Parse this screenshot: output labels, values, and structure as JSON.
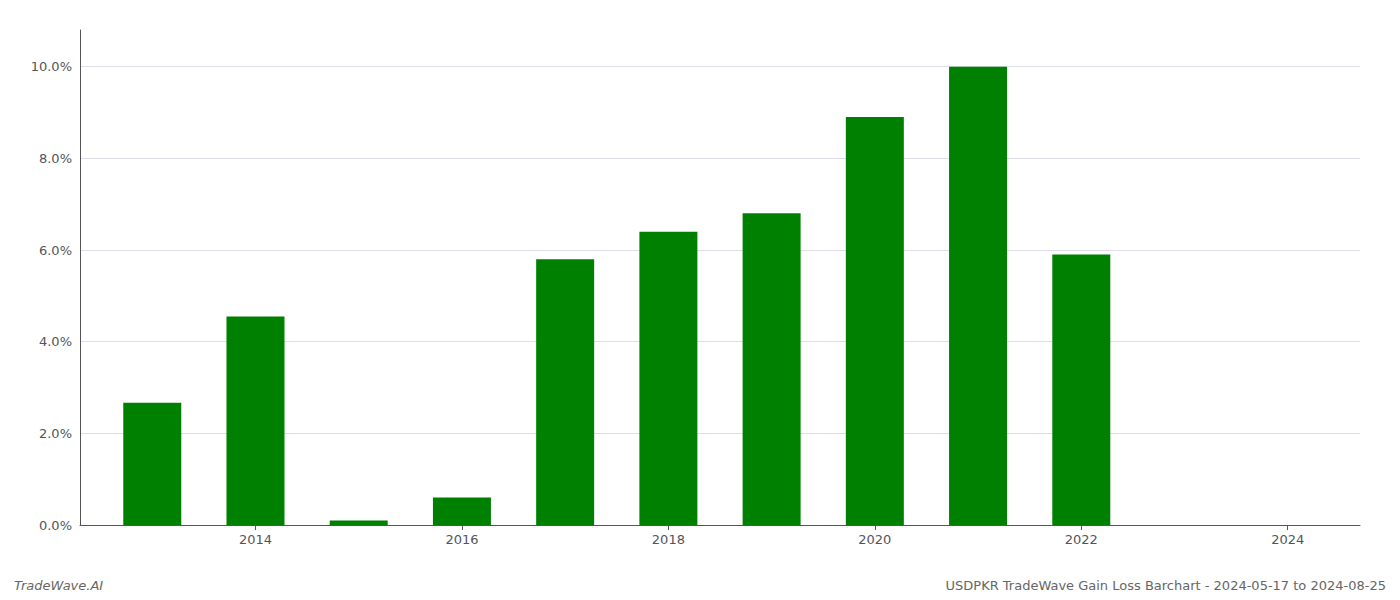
{
  "chart_data": {
    "type": "bar",
    "x": [
      2013,
      2014,
      2015,
      2016,
      2017,
      2018,
      2019,
      2020,
      2021,
      2022,
      2023
    ],
    "values": [
      0.0267,
      0.0455,
      0.001,
      0.006,
      0.058,
      0.064,
      0.068,
      0.089,
      0.1,
      0.059,
      0.0
    ],
    "color": "#008000",
    "xlim": [
      2012.3,
      2024.7
    ],
    "xticks": [
      2014,
      2016,
      2018,
      2020,
      2022,
      2024
    ],
    "ylim": [
      0,
      0.108
    ],
    "yticks": [
      {
        "value": 0.0,
        "label": "0.0%"
      },
      {
        "value": 0.02,
        "label": "2.0%"
      },
      {
        "value": 0.04,
        "label": "4.0%"
      },
      {
        "value": 0.06,
        "label": "6.0%"
      },
      {
        "value": 0.08,
        "label": "8.0%"
      },
      {
        "value": 0.1,
        "label": "10.0%"
      }
    ],
    "grid": true,
    "annotations": [
      "TradeWave.AI",
      "USDPKR TradeWave Gain Loss Barchart - 2024-05-17 to 2024-08-25"
    ]
  }
}
